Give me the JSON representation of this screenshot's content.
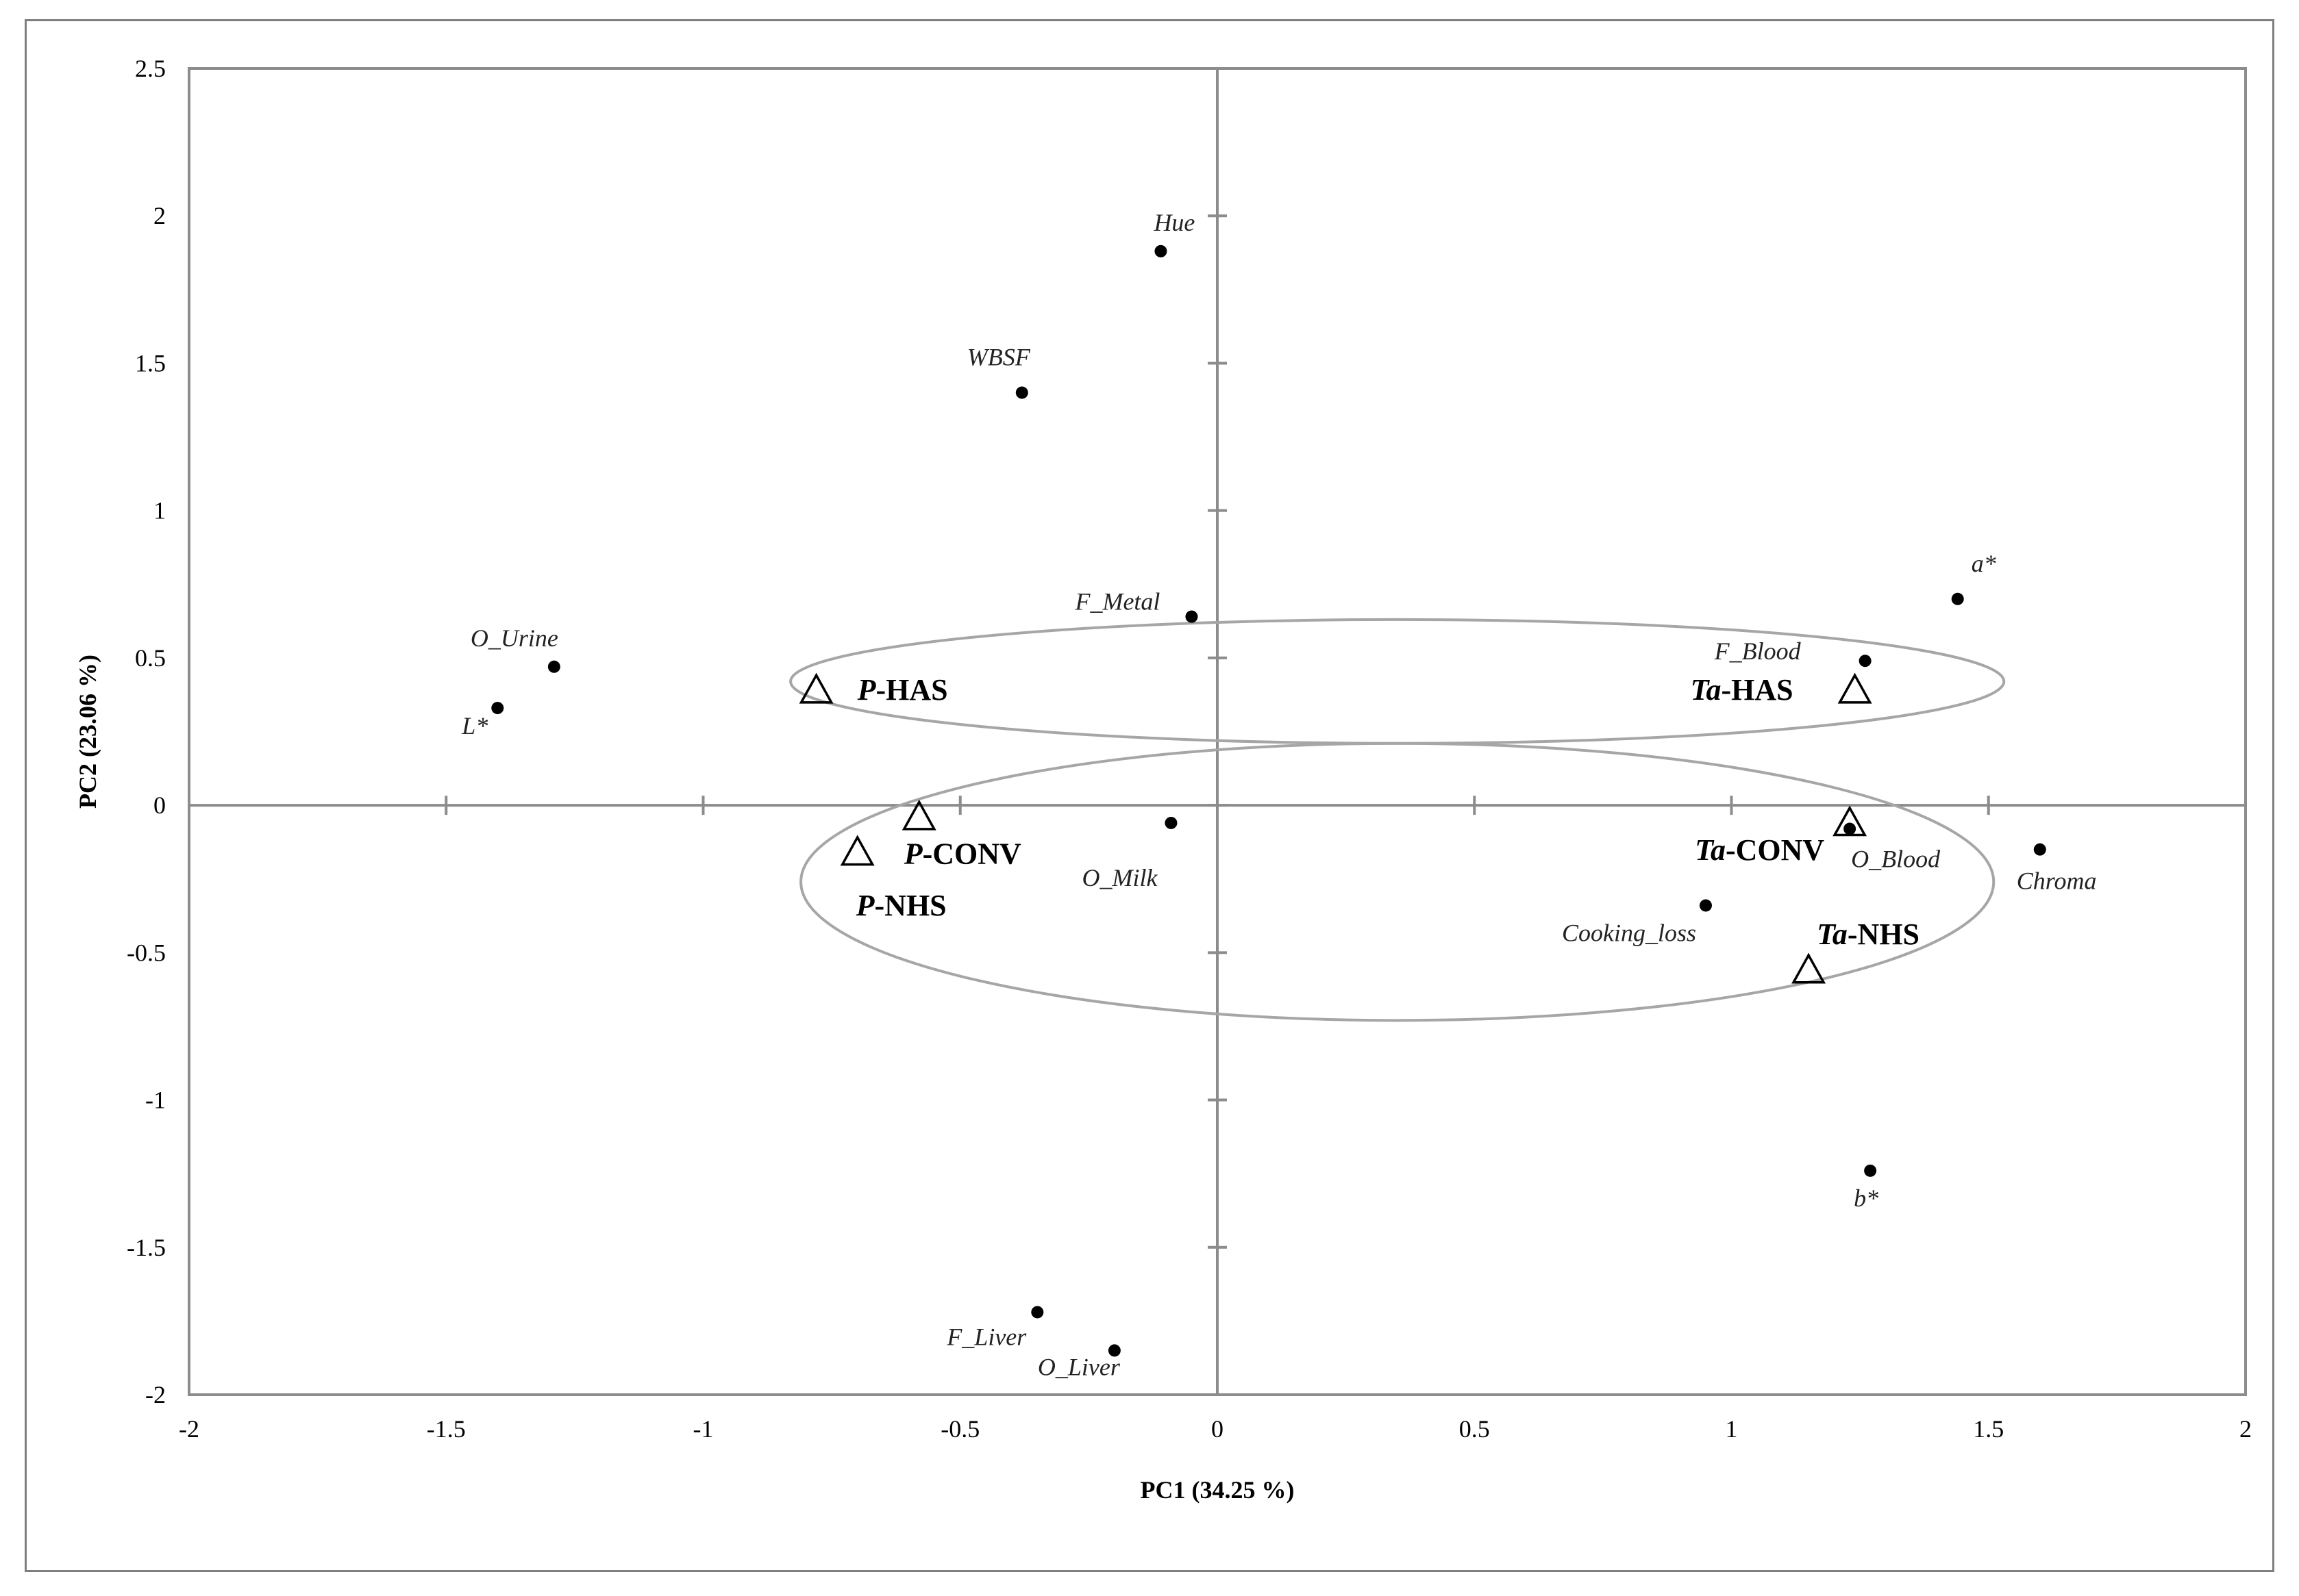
{
  "chart_data": {
    "type": "scatter",
    "title": "",
    "xlabel": "PC1 (34.25 %)",
    "ylabel": "PC2 (23.06 %)",
    "xlim": [
      -2,
      2
    ],
    "ylim": [
      -2,
      2.5
    ],
    "xticks": [
      "-2",
      "-1.5",
      "-1",
      "-0.5",
      "0",
      "0.5",
      "1",
      "1.5",
      "2"
    ],
    "yticks": [
      "2.5",
      "2",
      "1.5",
      "1",
      "0.5",
      "0",
      "-0.5",
      "-1",
      "-1.5",
      "-2"
    ],
    "grid": false,
    "variables": [
      {
        "label": "Hue",
        "x": -0.11,
        "y": 1.88
      },
      {
        "label": "WBSF",
        "x": -0.38,
        "y": 1.4
      },
      {
        "label": "a*",
        "x": 1.44,
        "y": 0.7
      },
      {
        "label": "F_Metal",
        "x": -0.05,
        "y": 0.64
      },
      {
        "label": "O_Urine",
        "x": -1.29,
        "y": 0.47
      },
      {
        "label": "L*",
        "x": -1.4,
        "y": 0.33
      },
      {
        "label": "F_Blood",
        "x": 1.26,
        "y": 0.49
      },
      {
        "label": "O_Milk",
        "x": -0.09,
        "y": -0.06
      },
      {
        "label": "O_Blood",
        "x": 1.23,
        "y": -0.08
      },
      {
        "label": "Chroma",
        "x": 1.6,
        "y": -0.15
      },
      {
        "label": "Cooking_loss",
        "x": 0.95,
        "y": -0.34
      },
      {
        "label": "b*",
        "x": 1.27,
        "y": -1.24
      },
      {
        "label": "F_Liver",
        "x": -0.35,
        "y": -1.72
      },
      {
        "label": "O_Liver",
        "x": -0.2,
        "y": -1.85
      }
    ],
    "groups": [
      {
        "prefix": "P",
        "suffix": "-HAS",
        "x": -0.78,
        "y": 0.39
      },
      {
        "prefix": "Ta",
        "suffix": "-HAS",
        "x": 1.24,
        "y": 0.39
      },
      {
        "prefix": "P",
        "suffix": "-CONV",
        "x": -0.58,
        "y": -0.04
      },
      {
        "prefix": "P",
        "suffix": "-NHS",
        "x": -0.7,
        "y": -0.16
      },
      {
        "prefix": "Ta",
        "suffix": "-CONV",
        "x": 1.23,
        "y": -0.06
      },
      {
        "prefix": "Ta",
        "suffix": "-NHS",
        "x": 1.15,
        "y": -0.56
      }
    ],
    "ellipses": [
      {
        "cx": 0.35,
        "cy": 0.42,
        "rx": 1.18,
        "ry": 0.21
      },
      {
        "cx": 0.35,
        "cy": -0.26,
        "rx": 1.16,
        "ry": 0.47
      }
    ]
  }
}
